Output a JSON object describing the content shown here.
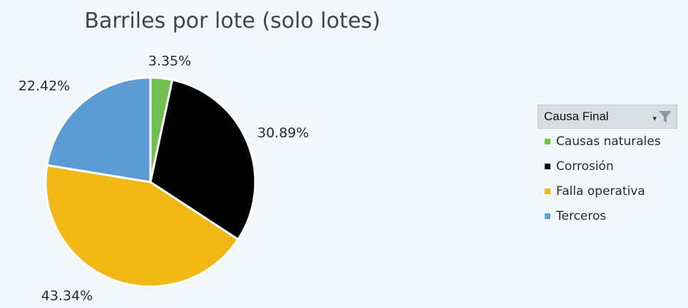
{
  "chart_data": {
    "type": "pie",
    "title": "Barriles por lote (solo lotes)",
    "categories": [
      "Causas naturales",
      "Corrosión",
      "Falla operativa",
      "Terceros"
    ],
    "values": [
      3.35,
      30.89,
      43.34,
      22.42
    ],
    "data_labels": [
      "3.35%",
      "30.89%",
      "43.34%",
      "22.42%"
    ],
    "colors": [
      "#70bf4f",
      "#000000",
      "#f0b715",
      "#5b9bd6"
    ],
    "legend_position": "right",
    "start_angle": "top-clockwise"
  },
  "legend": {
    "header": "Causa Final",
    "filter_icon": "filter-icon",
    "items": [
      {
        "label": "Causas naturales",
        "color": "#70bf4f"
      },
      {
        "label": "Corrosión",
        "color": "#000000"
      },
      {
        "label": "Falla operativa",
        "color": "#f0b715"
      },
      {
        "label": "Terceros",
        "color": "#5b9bd6"
      }
    ]
  },
  "colors": {
    "background": "#f2f7fc",
    "legend_header_bg": "#d9dde2"
  }
}
